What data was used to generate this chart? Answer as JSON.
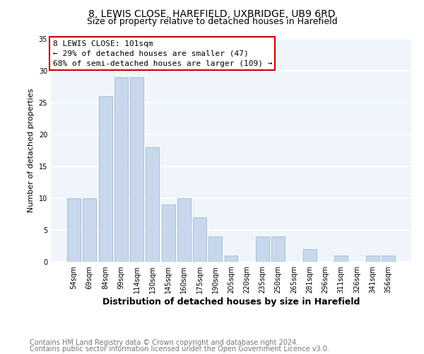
{
  "title": "8, LEWIS CLOSE, HAREFIELD, UXBRIDGE, UB9 6RD",
  "subtitle": "Size of property relative to detached houses in Harefield",
  "xlabel": "Distribution of detached houses by size in Harefield",
  "ylabel": "Number of detached properties",
  "bar_color": "#c8d8ec",
  "bar_edge_color": "#a0b8d0",
  "categories": [
    "54sqm",
    "69sqm",
    "84sqm",
    "99sqm",
    "114sqm",
    "130sqm",
    "145sqm",
    "160sqm",
    "175sqm",
    "190sqm",
    "205sqm",
    "220sqm",
    "235sqm",
    "250sqm",
    "265sqm",
    "281sqm",
    "296sqm",
    "311sqm",
    "326sqm",
    "341sqm",
    "356sqm"
  ],
  "values": [
    10,
    10,
    26,
    29,
    29,
    18,
    9,
    10,
    7,
    4,
    1,
    0,
    4,
    4,
    0,
    2,
    0,
    1,
    0,
    1,
    1
  ],
  "ylim": [
    0,
    35
  ],
  "yticks": [
    0,
    5,
    10,
    15,
    20,
    25,
    30,
    35
  ],
  "annotation_line1": "8 LEWIS CLOSE: 101sqm",
  "annotation_line2": "← 29% of detached houses are smaller (47)",
  "annotation_line3": "68% of semi-detached houses are larger (109) →",
  "annotation_box_color": "#ffffff",
  "annotation_box_edge_color": "#cc0000",
  "footer_line1": "Contains HM Land Registry data © Crown copyright and database right 2024.",
  "footer_line2": "Contains public sector information licensed under the Open Government Licence v3.0.",
  "background_color": "#ffffff",
  "plot_background_color": "#f0f5fb",
  "grid_color": "#ffffff",
  "title_fontsize": 10,
  "subtitle_fontsize": 9,
  "xlabel_fontsize": 9,
  "ylabel_fontsize": 8,
  "footer_fontsize": 7,
  "tick_fontsize": 7,
  "annot_fontsize": 8
}
